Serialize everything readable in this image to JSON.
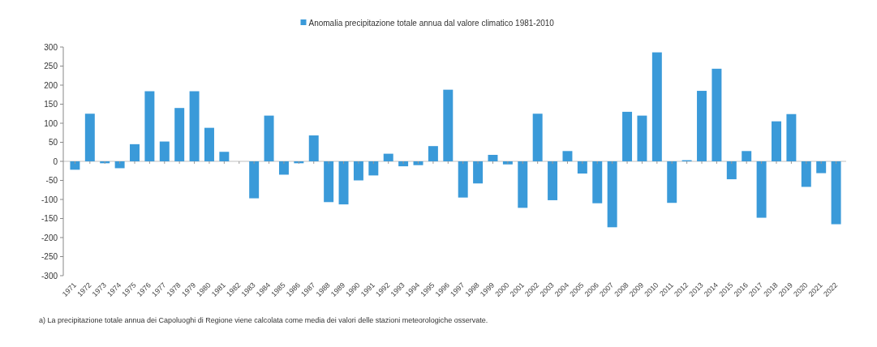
{
  "chart_data": {
    "type": "bar",
    "categories": [
      "1971",
      "1972",
      "1973",
      "1974",
      "1975",
      "1976",
      "1977",
      "1978",
      "1979",
      "1980",
      "1981",
      "1982",
      "1983",
      "1984",
      "1985",
      "1986",
      "1987",
      "1988",
      "1989",
      "1990",
      "1991",
      "1992",
      "1993",
      "1994",
      "1995",
      "1996",
      "1997",
      "1998",
      "1999",
      "2000",
      "2001",
      "2002",
      "2003",
      "2004",
      "2005",
      "2006",
      "2007",
      "2008",
      "2009",
      "2010",
      "2011",
      "2012",
      "2013",
      "2014",
      "2015",
      "2016",
      "2017",
      "2018",
      "2019",
      "2020",
      "2021",
      "2022"
    ],
    "series": [
      {
        "name": "Anomalia precipitazione totale annua dal valore climatico 1981-2010",
        "color": "#3a9ad9",
        "values": [
          -22,
          125,
          -5,
          -18,
          45,
          184,
          52,
          140,
          184,
          88,
          25,
          0,
          -97,
          120,
          -35,
          -5,
          68,
          -107,
          -113,
          -50,
          -37,
          20,
          -13,
          -10,
          40,
          188,
          -95,
          -58,
          17,
          -8,
          -122,
          125,
          -102,
          27,
          -32,
          -110,
          -173,
          130,
          120,
          286,
          -109,
          3,
          185,
          243,
          -47,
          27,
          -148,
          105,
          124,
          -67,
          -31,
          -165
        ]
      }
    ],
    "ylim": [
      -300,
      300
    ],
    "yticks": [
      -300,
      -250,
      -200,
      -150,
      -100,
      -50,
      0,
      50,
      100,
      150,
      200,
      250,
      300
    ],
    "legend": "top",
    "annotations": [
      "a) La precipitazione totale annua dei Capoluoghi di Regione viene calcolata come media dei valori delle stazioni meteorologiche osservate."
    ]
  }
}
